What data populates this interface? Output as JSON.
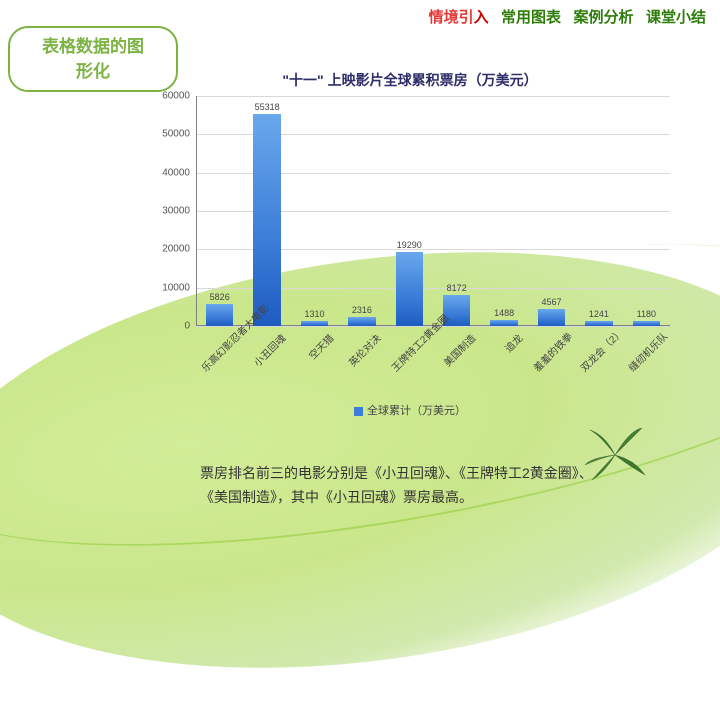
{
  "nav": {
    "items": [
      {
        "label": "情境引",
        "suffix": "入",
        "active": true
      },
      {
        "label": "常用图表",
        "active": false
      },
      {
        "label": "案例分析",
        "active": false
      },
      {
        "label": "课堂小结",
        "active": false
      }
    ]
  },
  "section_title": {
    "line1": "表格数据的图",
    "line2": "形化"
  },
  "chart": {
    "type": "bar",
    "title": "\"十一\" 上映影片全球累积票房（万美元）",
    "title_color": "#2d2d6a",
    "title_fontsize": 14,
    "y_axis": {
      "min": 0,
      "max": 60000,
      "step": 10000
    },
    "bar_gradient": [
      "#6aa8ec",
      "#3b7dd8",
      "#1e5cc0"
    ],
    "grid_color": "#d9d9d9",
    "axis_color": "#808080",
    "label_fontsize": 10,
    "value_fontsize": 9,
    "categories": [
      "乐高幻影忍者大电影",
      "小丑回魂",
      "空天猎",
      "英伦对决",
      "王牌特工2黄金圈",
      "美国制造",
      "追龙",
      "羞羞的铁拳",
      "双龙会（2）",
      "缝纫机乐队"
    ],
    "values": [
      5826,
      55318,
      1310,
      2316,
      19290,
      8172,
      1488,
      4567,
      1241,
      1180
    ],
    "legend": {
      "label": "全球累计（万美元）",
      "color": "#3b7dd8"
    }
  },
  "body_text": "票房排名前三的电影分别是《小丑回魂》、《王牌特工2黄金圈》、《美国制造》，其中《小丑回魂》票房最高。",
  "deco": {
    "swoosh_colors": [
      "#cdeb8c",
      "#b4dc5a",
      "#8cc832"
    ],
    "leaf_color": "#2f6b1f"
  }
}
